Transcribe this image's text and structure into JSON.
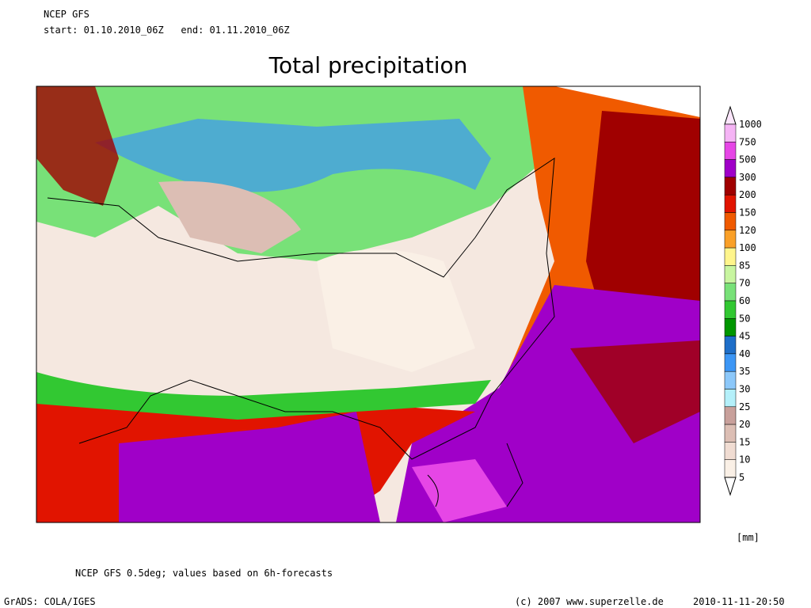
{
  "header": {
    "model": "NCEP GFS",
    "period": "start: 01.10.2010_06Z   end: 01.11.2010_06Z"
  },
  "title": "Total precipitation",
  "legend": {
    "levels": [
      1000,
      750,
      500,
      300,
      200,
      150,
      120,
      100,
      85,
      70,
      60,
      50,
      45,
      40,
      35,
      30,
      25,
      20,
      15,
      10,
      5
    ],
    "colors": [
      "#fbe6fb",
      "#f5b4f5",
      "#e646e6",
      "#a000c8",
      "#a00000",
      "#e11400",
      "#f05a00",
      "#faa028",
      "#fff58c",
      "#c8f5a0",
      "#78e178",
      "#32c832",
      "#009600",
      "#1e6ec8",
      "#3c96f5",
      "#8cc8fa",
      "#b4f0fa",
      "#c8a09b",
      "#dcbeb4",
      "#f0dcd2",
      "#faf0e6",
      "#ffffff"
    ],
    "unit": "[mm]"
  },
  "footer": {
    "note": "NCEP GFS 0.5deg; values based on 6h-forecasts",
    "software": "GrADS: COLA/IGES",
    "copyright": "(c) 2007 www.superzelle.de",
    "timestamp": "2010-11-11-20:50"
  }
}
